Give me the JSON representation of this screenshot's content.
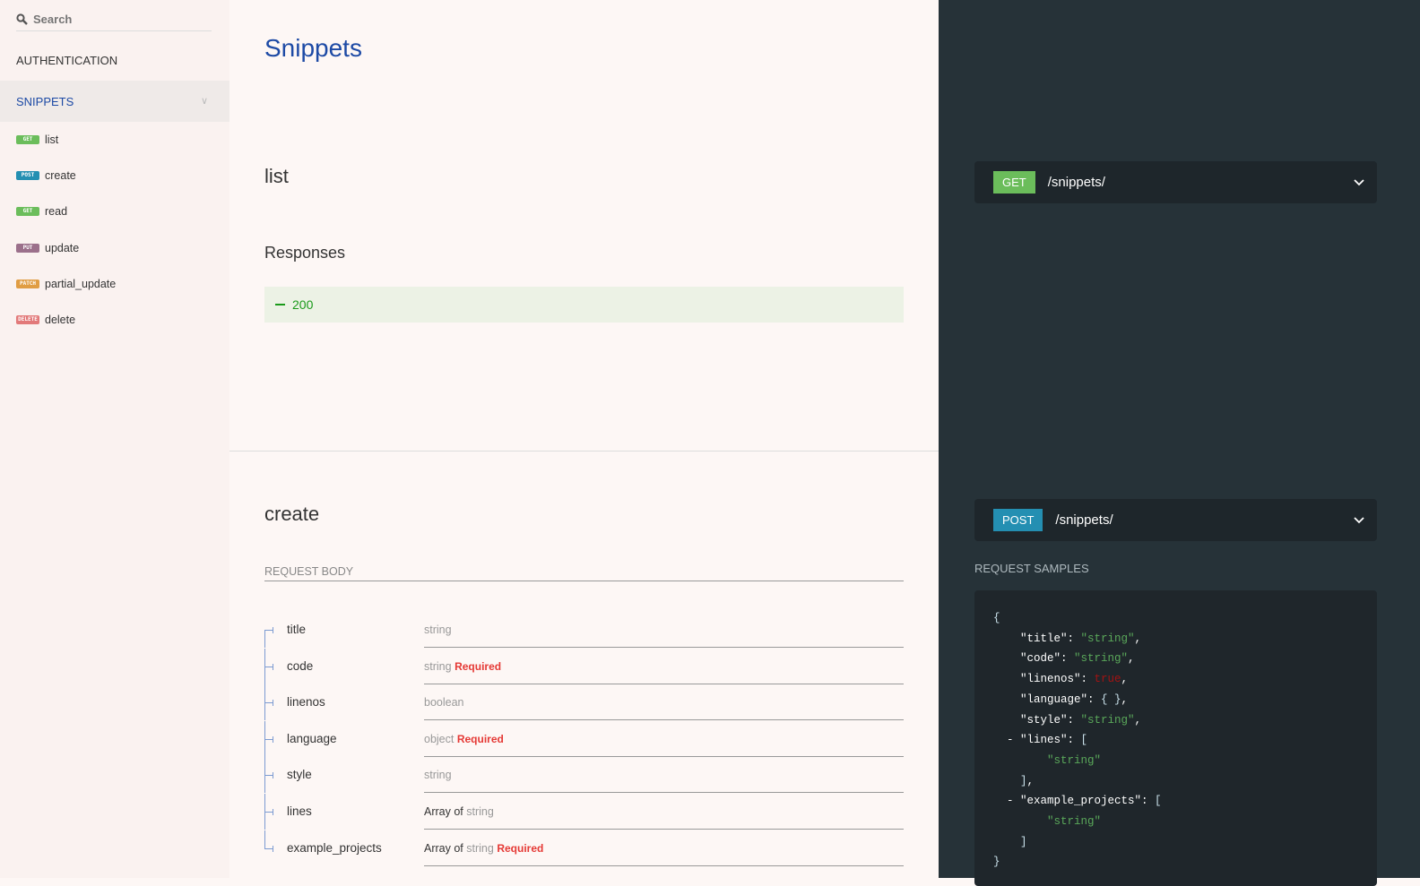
{
  "sidebar": {
    "search_placeholder": "Search",
    "groups": [
      {
        "label": "AUTHENTICATION"
      },
      {
        "label": "SNIPPETS"
      }
    ],
    "items": [
      {
        "method": "GET",
        "label": "list",
        "color": "#6bbd5b"
      },
      {
        "method": "POST",
        "label": "create",
        "color": "#248fb2"
      },
      {
        "method": "GET",
        "label": "read",
        "color": "#6bbd5b"
      },
      {
        "method": "PUT",
        "label": "update",
        "color": "#9b708b"
      },
      {
        "method": "PATCH",
        "label": "partial_update",
        "color": "#e09d43"
      },
      {
        "method": "DELETE",
        "label": "delete",
        "color": "#e27a7a"
      }
    ]
  },
  "main": {
    "title": "Snippets",
    "list": {
      "title": "list",
      "responses_label": "Responses",
      "response_code": "200"
    },
    "create": {
      "title": "create",
      "request_body_label": "REQUEST BODY",
      "fields": [
        {
          "name": "title",
          "prefix": "",
          "type": "string",
          "required": ""
        },
        {
          "name": "code",
          "prefix": "",
          "type": "string",
          "required": "Required"
        },
        {
          "name": "linenos",
          "prefix": "",
          "type": "boolean",
          "required": ""
        },
        {
          "name": "language",
          "prefix": "",
          "type": "object",
          "required": "Required"
        },
        {
          "name": "style",
          "prefix": "",
          "type": "string",
          "required": ""
        },
        {
          "name": "lines",
          "prefix": "Array of ",
          "type": "string",
          "required": ""
        },
        {
          "name": "example_projects",
          "prefix": "Array of ",
          "type": "string",
          "required": "Required"
        }
      ]
    }
  },
  "right": {
    "list_endpoint": {
      "method": "GET",
      "path": "/snippets/",
      "color": "#6bbd5b"
    },
    "create_endpoint": {
      "method": "POST",
      "path": "/snippets/",
      "color": "#248fb2"
    },
    "request_samples_label": "REQUEST SAMPLES",
    "code_lines": [
      [
        [
          "p2",
          "{"
        ]
      ],
      [
        [
          "k",
          "    \"title\": "
        ],
        [
          "s",
          "\"string\""
        ],
        [
          "k",
          ","
        ]
      ],
      [
        [
          "k",
          "    \"code\": "
        ],
        [
          "s",
          "\"string\""
        ],
        [
          "k",
          ","
        ]
      ],
      [
        [
          "k",
          "    \"linenos\": "
        ],
        [
          "b",
          "true"
        ],
        [
          "k",
          ","
        ]
      ],
      [
        [
          "k",
          "    \"language\": "
        ],
        [
          "p2",
          "{ }"
        ],
        [
          "k",
          ","
        ]
      ],
      [
        [
          "k",
          "    \"style\": "
        ],
        [
          "s",
          "\"string\""
        ],
        [
          "k",
          ","
        ]
      ],
      [
        [
          "k",
          "  - \"lines\": "
        ],
        [
          "p2",
          "["
        ]
      ],
      [
        [
          "s",
          "        \"string\""
        ]
      ],
      [
        [
          "p2",
          "    ]"
        ],
        [
          "k",
          ","
        ]
      ],
      [
        [
          "k",
          "  - \"example_projects\": "
        ],
        [
          "p2",
          "["
        ]
      ],
      [
        [
          "s",
          "        \"string\""
        ]
      ],
      [
        [
          "p2",
          "    ]"
        ]
      ],
      [
        [
          "p2",
          "}"
        ]
      ]
    ]
  }
}
